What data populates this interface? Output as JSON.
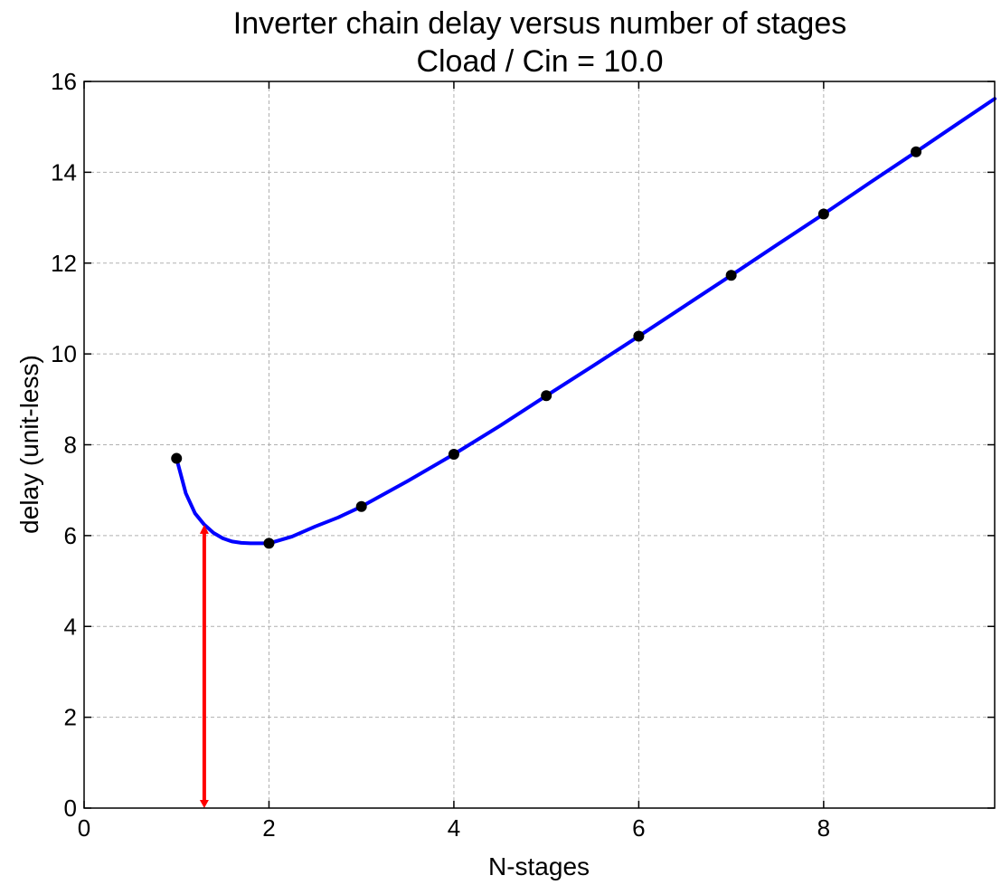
{
  "chart_data": {
    "type": "line",
    "title": "Inverter chain delay versus number of stages",
    "subtitle": "Cload / Cin = 10.0",
    "xlabel": "N-stages",
    "ylabel": "delay (unit-less)",
    "xlim": [
      0,
      9.85
    ],
    "ylim": [
      0,
      16
    ],
    "x_ticks": [
      0,
      2,
      4,
      6,
      8
    ],
    "y_ticks": [
      0,
      2,
      4,
      6,
      8,
      10,
      12,
      14,
      16
    ],
    "grid": true,
    "series": [
      {
        "kind": "curve",
        "color": "#0000ff",
        "x": [
          1.0,
          1.1,
          1.2,
          1.3,
          1.4,
          1.5,
          1.6,
          1.7,
          1.8,
          1.9,
          2.0,
          2.25,
          2.5,
          2.75,
          3.0,
          3.5,
          4.0,
          4.5,
          5.0,
          5.5,
          6.0,
          6.5,
          7.0,
          7.5,
          8.0,
          8.5,
          9.0,
          9.5,
          9.85
        ],
        "y": [
          7.7,
          6.93,
          6.49,
          6.24,
          6.06,
          5.94,
          5.87,
          5.84,
          5.83,
          5.83,
          5.83,
          5.98,
          6.2,
          6.4,
          6.64,
          7.2,
          7.79,
          8.42,
          9.08,
          9.73,
          10.39,
          11.06,
          11.73,
          12.41,
          13.08,
          13.77,
          14.45,
          15.14,
          15.62
        ]
      },
      {
        "kind": "points",
        "color": "#000000",
        "x": [
          1,
          2,
          3,
          4,
          5,
          6,
          7,
          8,
          9
        ],
        "y": [
          7.7,
          5.83,
          6.64,
          7.79,
          9.08,
          10.39,
          11.73,
          13.08,
          14.45
        ]
      }
    ],
    "annotations": [
      {
        "kind": "vertical-arrow",
        "color": "#ff0000",
        "x": 1.3,
        "y_from": 6.24,
        "y_to": 0
      }
    ]
  }
}
